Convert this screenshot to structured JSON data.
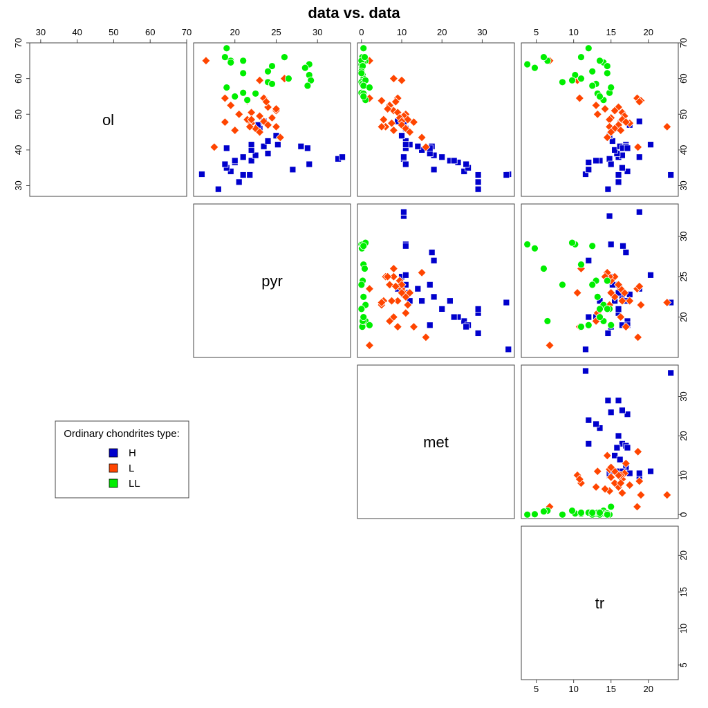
{
  "chart_data": {
    "type": "scatter",
    "title": "data vs. data",
    "variables": [
      "ol",
      "pyr",
      "met",
      "tr"
    ],
    "axes": {
      "ol": {
        "range": [
          27,
          70
        ],
        "ticks": [
          30,
          40,
          50,
          60,
          70
        ]
      },
      "pyr": {
        "range": [
          15,
          34
        ],
        "ticks": [
          20,
          25,
          30
        ]
      },
      "met": {
        "range": [
          -1,
          38
        ],
        "ticks": [
          0,
          10,
          20,
          30
        ]
      },
      "tr": {
        "range": [
          3,
          24
        ],
        "ticks": [
          5,
          10,
          15,
          20
        ]
      }
    },
    "legend": {
      "title": "Ordinary chondrites type:",
      "position": "bottom-left",
      "entries": [
        "H",
        "L",
        "LL"
      ]
    },
    "series": [
      {
        "name": "H",
        "color": "#0000CC",
        "marker": "square",
        "points": [
          {
            "ol": 33.2,
            "pyr": 16.0,
            "met": 36.5,
            "tr": 11.6
          },
          {
            "ol": 29.0,
            "pyr": 18.0,
            "met": 29.0,
            "tr": 14.6
          },
          {
            "ol": 31.0,
            "pyr": 20.5,
            "met": 29.0,
            "tr": 16.0
          },
          {
            "ol": 33.0,
            "pyr": 21.0,
            "met": 29.0,
            "tr": 16.0
          },
          {
            "ol": 34.0,
            "pyr": 19.5,
            "met": 25.5,
            "tr": 17.2
          },
          {
            "ol": 35.0,
            "pyr": 19.0,
            "met": 26.5,
            "tr": 16.5
          },
          {
            "ol": 36.0,
            "pyr": 18.8,
            "met": 26.0,
            "tr": 15.0
          },
          {
            "ol": 36.5,
            "pyr": 20.0,
            "met": 24.0,
            "tr": 12.0
          },
          {
            "ol": 37.0,
            "pyr": 22.0,
            "met": 22.0,
            "tr": 13.5
          },
          {
            "ol": 38.0,
            "pyr": 21.0,
            "met": 20.0,
            "tr": 16.0
          },
          {
            "ol": 38.5,
            "pyr": 22.5,
            "met": 18.0,
            "tr": 16.5
          },
          {
            "ol": 39.0,
            "pyr": 24.0,
            "met": 17.0,
            "tr": 15.8
          },
          {
            "ol": 40.0,
            "pyr": 22.0,
            "met": 15.0,
            "tr": 15.5
          },
          {
            "ol": 41.0,
            "pyr": 23.5,
            "met": 14.0,
            "tr": 16.2
          },
          {
            "ol": 41.5,
            "pyr": 22.0,
            "met": 12.0,
            "tr": 17.0
          },
          {
            "ol": 42.5,
            "pyr": 24.0,
            "met": 11.0,
            "tr": 15.2
          },
          {
            "ol": 44.0,
            "pyr": 25.0,
            "met": 10.0,
            "tr": 14.8
          },
          {
            "ol": 46.0,
            "pyr": 23.0,
            "met": 11.0,
            "tr": 16.0
          },
          {
            "ol": 47.0,
            "pyr": 22.8,
            "met": 10.5,
            "tr": 17.5
          },
          {
            "ol": 48.0,
            "pyr": 23.5,
            "met": 9.0,
            "tr": 18.8
          },
          {
            "ol": 37.5,
            "pyr": 32.5,
            "met": 10.5,
            "tr": 14.8
          },
          {
            "ol": 36.0,
            "pyr": 29.0,
            "met": 11.0,
            "tr": 15.0
          },
          {
            "ol": 34.5,
            "pyr": 27.0,
            "met": 18.0,
            "tr": 12.0
          },
          {
            "ol": 38.0,
            "pyr": 33.0,
            "met": 10.5,
            "tr": 18.8
          },
          {
            "ol": 41.0,
            "pyr": 28.0,
            "met": 17.5,
            "tr": 17.0
          },
          {
            "ol": 40.5,
            "pyr": 28.8,
            "met": 11.0,
            "tr": 16.6
          },
          {
            "ol": 33.0,
            "pyr": 21.8,
            "met": 36.0,
            "tr": 23.0
          },
          {
            "ol": 41.5,
            "pyr": 25.2,
            "met": 11.0,
            "tr": 20.3
          },
          {
            "ol": 40.5,
            "pyr": 19.0,
            "met": 17.0,
            "tr": 17.2
          },
          {
            "ol": 37.0,
            "pyr": 20.0,
            "met": 23.0,
            "tr": 13.0
          }
        ]
      },
      {
        "name": "L",
        "color": "#FF4500",
        "marker": "diamond",
        "points": [
          {
            "ol": 54.5,
            "pyr": 23.5,
            "met": 2.0,
            "tr": 18.5
          },
          {
            "ol": 53.8,
            "pyr": 21.5,
            "met": 5.0,
            "tr": 19.0
          },
          {
            "ol": 52.0,
            "pyr": 24.0,
            "met": 7.0,
            "tr": 16.0
          },
          {
            "ol": 51.0,
            "pyr": 25.0,
            "met": 8.0,
            "tr": 15.5
          },
          {
            "ol": 50.5,
            "pyr": 22.0,
            "met": 9.0,
            "tr": 16.5
          },
          {
            "ol": 50.0,
            "pyr": 20.5,
            "met": 11.0,
            "tr": 13.2
          },
          {
            "ol": 49.5,
            "pyr": 23.0,
            "met": 10.5,
            "tr": 16.8
          },
          {
            "ol": 49.0,
            "pyr": 24.5,
            "met": 9.5,
            "tr": 15.0
          },
          {
            "ol": 48.5,
            "pyr": 21.5,
            "met": 11.5,
            "tr": 14.8
          },
          {
            "ol": 48.0,
            "pyr": 23.5,
            "met": 10.0,
            "tr": 16.3
          },
          {
            "ol": 47.5,
            "pyr": 22.0,
            "met": 7.5,
            "tr": 17.5
          },
          {
            "ol": 47.0,
            "pyr": 24.0,
            "met": 10.0,
            "tr": 16.0
          },
          {
            "ol": 46.5,
            "pyr": 25.0,
            "met": 6.0,
            "tr": 14.8
          },
          {
            "ol": 46.0,
            "pyr": 22.5,
            "met": 11.0,
            "tr": 15.5
          },
          {
            "ol": 45.5,
            "pyr": 20.0,
            "met": 8.0,
            "tr": 16.3
          },
          {
            "ol": 45.0,
            "pyr": 23.0,
            "met": 12.0,
            "tr": 15.0
          },
          {
            "ol": 43.5,
            "pyr": 25.5,
            "met": 15.0,
            "tr": 14.5
          },
          {
            "ol": 40.8,
            "pyr": 17.5,
            "met": 16.0,
            "tr": 18.6
          },
          {
            "ol": 59.5,
            "pyr": 23.0,
            "met": 10.0,
            "tr": 10.5
          },
          {
            "ol": 60.0,
            "pyr": 26.0,
            "met": 8.0,
            "tr": 11.0
          },
          {
            "ol": 65.0,
            "pyr": 16.5,
            "met": 2.0,
            "tr": 6.8
          },
          {
            "ol": 54.5,
            "pyr": 18.8,
            "met": 9.0,
            "tr": 10.8
          },
          {
            "ol": 52.5,
            "pyr": 19.5,
            "met": 7.0,
            "tr": 13.0
          },
          {
            "ol": 51.5,
            "pyr": 25.0,
            "met": 6.5,
            "tr": 14.2
          },
          {
            "ol": 48.5,
            "pyr": 22.0,
            "met": 5.5,
            "tr": 16.5
          },
          {
            "ol": 47.8,
            "pyr": 18.8,
            "met": 13.0,
            "tr": 17.0
          },
          {
            "ol": 46.5,
            "pyr": 21.8,
            "met": 5.0,
            "tr": 22.5
          },
          {
            "ol": 53.5,
            "pyr": 23.8,
            "met": 8.5,
            "tr": 18.8
          }
        ]
      },
      {
        "name": "LL",
        "color": "#00EE00",
        "marker": "circle",
        "points": [
          {
            "ol": 68.5,
            "pyr": 19.0,
            "met": 0.5,
            "tr": 12.0
          },
          {
            "ol": 66.0,
            "pyr": 18.8,
            "met": 0.2,
            "tr": 11.0
          },
          {
            "ol": 65.0,
            "pyr": 19.5,
            "met": 1.0,
            "tr": 6.5
          },
          {
            "ol": 64.0,
            "pyr": 29.0,
            "met": 0.0,
            "tr": 3.8
          },
          {
            "ol": 63.0,
            "pyr": 28.5,
            "met": 0.1,
            "tr": 4.8
          },
          {
            "ol": 61.0,
            "pyr": 29.0,
            "met": 0.3,
            "tr": 10.2
          },
          {
            "ol": 60.0,
            "pyr": 26.5,
            "met": 0.5,
            "tr": 11.0
          },
          {
            "ol": 59.0,
            "pyr": 24.0,
            "met": 0.0,
            "tr": 8.5
          },
          {
            "ol": 58.5,
            "pyr": 24.5,
            "met": 0.2,
            "tr": 13.0
          },
          {
            "ol": 56.0,
            "pyr": 21.0,
            "met": 0.0,
            "tr": 14.8
          },
          {
            "ol": 55.8,
            "pyr": 22.5,
            "met": 0.5,
            "tr": 13.2
          },
          {
            "ol": 54.0,
            "pyr": 21.5,
            "met": 1.0,
            "tr": 14.0
          },
          {
            "ol": 64.5,
            "pyr": 19.5,
            "met": 0.3,
            "tr": 14.0
          },
          {
            "ol": 65.0,
            "pyr": 21.0,
            "met": 0.0,
            "tr": 13.5
          },
          {
            "ol": 63.5,
            "pyr": 24.5,
            "met": 0.3,
            "tr": 14.5
          },
          {
            "ol": 66.0,
            "pyr": 26.0,
            "met": 0.8,
            "tr": 6.0
          },
          {
            "ol": 62.0,
            "pyr": 24.0,
            "met": 0.0,
            "tr": 12.5
          },
          {
            "ol": 59.5,
            "pyr": 29.2,
            "met": 1.0,
            "tr": 9.8
          },
          {
            "ol": 58.0,
            "pyr": 28.8,
            "met": 0.5,
            "tr": 12.5
          },
          {
            "ol": 61.5,
            "pyr": 21.0,
            "met": 0.0,
            "tr": 14.5
          },
          {
            "ol": 57.5,
            "pyr": 19.0,
            "met": 2.0,
            "tr": 15.0
          },
          {
            "ol": 55.0,
            "pyr": 20.0,
            "met": 0.5,
            "tr": 13.5
          }
        ]
      }
    ]
  }
}
